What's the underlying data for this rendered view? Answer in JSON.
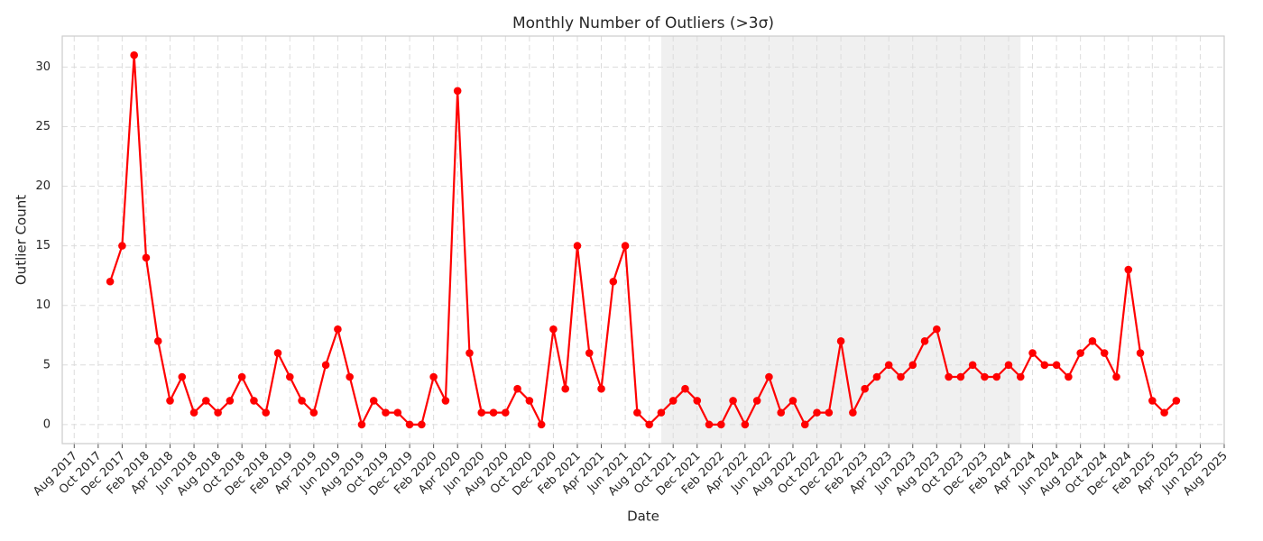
{
  "chart_data": {
    "type": "line",
    "title": "Monthly Number of Outliers (>3σ)",
    "x_label": "Date",
    "y_label": "Outlier Count",
    "x": [
      "2017-11",
      "2017-12",
      "2018-01",
      "2018-02",
      "2018-03",
      "2018-04",
      "2018-05",
      "2018-06",
      "2018-07",
      "2018-08",
      "2018-09",
      "2018-10",
      "2018-11",
      "2018-12",
      "2019-01",
      "2019-02",
      "2019-03",
      "2019-04",
      "2019-05",
      "2019-06",
      "2019-07",
      "2019-08",
      "2019-09",
      "2019-10",
      "2019-11",
      "2019-12",
      "2020-01",
      "2020-02",
      "2020-03",
      "2020-04",
      "2020-05",
      "2020-06",
      "2020-07",
      "2020-08",
      "2020-09",
      "2020-10",
      "2020-11",
      "2020-12",
      "2021-01",
      "2021-02",
      "2021-03",
      "2021-04",
      "2021-05",
      "2021-06",
      "2021-07",
      "2021-08",
      "2021-09",
      "2021-10",
      "2021-11",
      "2021-12",
      "2022-01",
      "2022-02",
      "2022-03",
      "2022-04",
      "2022-05",
      "2022-06",
      "2022-07",
      "2022-08",
      "2022-09",
      "2022-10",
      "2022-11",
      "2022-12",
      "2023-01",
      "2023-02",
      "2023-03",
      "2023-04",
      "2023-05",
      "2023-06",
      "2023-07",
      "2023-08",
      "2023-09",
      "2023-10",
      "2023-11",
      "2023-12",
      "2024-01",
      "2024-02",
      "2024-03",
      "2024-04",
      "2024-05",
      "2024-06",
      "2024-07",
      "2024-08",
      "2024-09",
      "2024-10",
      "2024-11",
      "2024-12",
      "2025-01",
      "2025-02",
      "2025-03",
      "2025-04"
    ],
    "values": [
      12,
      15,
      31,
      14,
      7,
      2,
      4,
      1,
      2,
      1,
      2,
      4,
      2,
      1,
      6,
      4,
      2,
      1,
      5,
      8,
      4,
      0,
      2,
      1,
      1,
      0,
      0,
      4,
      2,
      28,
      6,
      1,
      1,
      1,
      3,
      2,
      0,
      8,
      3,
      15,
      6,
      3,
      12,
      15,
      1,
      0,
      1,
      2,
      3,
      2,
      0,
      0,
      2,
      0,
      2,
      4,
      1,
      2,
      0,
      1,
      1,
      7,
      1,
      3,
      4,
      5,
      4,
      5,
      7,
      8,
      4,
      4,
      5,
      4,
      4,
      5,
      4,
      6,
      5,
      5,
      4,
      6,
      7,
      6,
      4,
      13,
      6,
      2,
      1,
      2
    ],
    "color": "#ff0000",
    "shaded_range": [
      "2021-09",
      "2024-03"
    ],
    "xlim": [
      "2017-07",
      "2025-08"
    ],
    "xticks": [
      {
        "value": "2017-08",
        "label": "Aug 2017"
      },
      {
        "value": "2017-10",
        "label": "Oct 2017"
      },
      {
        "value": "2017-12",
        "label": "Dec 2017"
      },
      {
        "value": "2018-02",
        "label": "Feb 2018"
      },
      {
        "value": "2018-04",
        "label": "Apr 2018"
      },
      {
        "value": "2018-06",
        "label": "Jun 2018"
      },
      {
        "value": "2018-08",
        "label": "Aug 2018"
      },
      {
        "value": "2018-10",
        "label": "Oct 2018"
      },
      {
        "value": "2018-12",
        "label": "Dec 2018"
      },
      {
        "value": "2019-02",
        "label": "Feb 2019"
      },
      {
        "value": "2019-04",
        "label": "Apr 2019"
      },
      {
        "value": "2019-06",
        "label": "Jun 2019"
      },
      {
        "value": "2019-08",
        "label": "Aug 2019"
      },
      {
        "value": "2019-10",
        "label": "Oct 2019"
      },
      {
        "value": "2019-12",
        "label": "Dec 2019"
      },
      {
        "value": "2020-02",
        "label": "Feb 2020"
      },
      {
        "value": "2020-04",
        "label": "Apr 2020"
      },
      {
        "value": "2020-06",
        "label": "Jun 2020"
      },
      {
        "value": "2020-08",
        "label": "Aug 2020"
      },
      {
        "value": "2020-10",
        "label": "Oct 2020"
      },
      {
        "value": "2020-12",
        "label": "Dec 2020"
      },
      {
        "value": "2021-02",
        "label": "Feb 2021"
      },
      {
        "value": "2021-04",
        "label": "Apr 2021"
      },
      {
        "value": "2021-06",
        "label": "Jun 2021"
      },
      {
        "value": "2021-08",
        "label": "Aug 2021"
      },
      {
        "value": "2021-10",
        "label": "Oct 2021"
      },
      {
        "value": "2021-12",
        "label": "Dec 2021"
      },
      {
        "value": "2022-02",
        "label": "Feb 2022"
      },
      {
        "value": "2022-04",
        "label": "Apr 2022"
      },
      {
        "value": "2022-06",
        "label": "Jun 2022"
      },
      {
        "value": "2022-08",
        "label": "Aug 2022"
      },
      {
        "value": "2022-10",
        "label": "Oct 2022"
      },
      {
        "value": "2022-12",
        "label": "Dec 2022"
      },
      {
        "value": "2023-02",
        "label": "Feb 2023"
      },
      {
        "value": "2023-04",
        "label": "Apr 2023"
      },
      {
        "value": "2023-06",
        "label": "Jun 2023"
      },
      {
        "value": "2023-08",
        "label": "Aug 2023"
      },
      {
        "value": "2023-10",
        "label": "Oct 2023"
      },
      {
        "value": "2023-12",
        "label": "Dec 2023"
      },
      {
        "value": "2024-02",
        "label": "Feb 2024"
      },
      {
        "value": "2024-04",
        "label": "Apr 2024"
      },
      {
        "value": "2024-06",
        "label": "Jun 2024"
      },
      {
        "value": "2024-08",
        "label": "Aug 2024"
      },
      {
        "value": "2024-10",
        "label": "Oct 2024"
      },
      {
        "value": "2024-12",
        "label": "Dec 2024"
      },
      {
        "value": "2025-02",
        "label": "Feb 2025"
      },
      {
        "value": "2025-04",
        "label": "Apr 2025"
      },
      {
        "value": "2025-06",
        "label": "Jun 2025"
      },
      {
        "value": "2025-08",
        "label": "Aug 2025"
      }
    ],
    "ylim": [
      -1.6,
      32.6
    ],
    "yticks": [
      0,
      5,
      10,
      15,
      20,
      25,
      30
    ],
    "grid": true
  }
}
